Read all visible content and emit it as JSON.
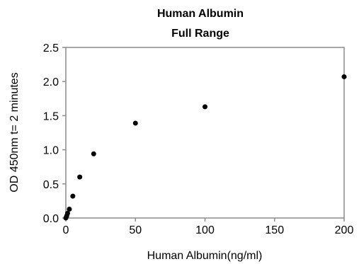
{
  "chart_data": {
    "type": "scatter",
    "title": "Human  Albumin",
    "subtitle": "Full Range",
    "xlabel": "Human  Albumin(ng/ml)",
    "ylabel": "OD 450nm t= 2 minutes",
    "xlim": [
      0,
      200
    ],
    "ylim": [
      0,
      2.5
    ],
    "xticks": [
      "0",
      "50",
      "100",
      "150",
      "200"
    ],
    "yticks": [
      "0.0",
      "0.5",
      "1.0",
      "1.5",
      "2.0",
      "2.5"
    ],
    "grid": false,
    "legend": "none",
    "series": [
      {
        "x": [
          0,
          0.625,
          1.25,
          2.5,
          5,
          10,
          20,
          50,
          100,
          200
        ],
        "y": [
          0.0,
          0.03,
          0.07,
          0.13,
          0.32,
          0.6,
          0.94,
          1.39,
          1.63,
          2.07
        ],
        "color": "#000000"
      }
    ]
  }
}
